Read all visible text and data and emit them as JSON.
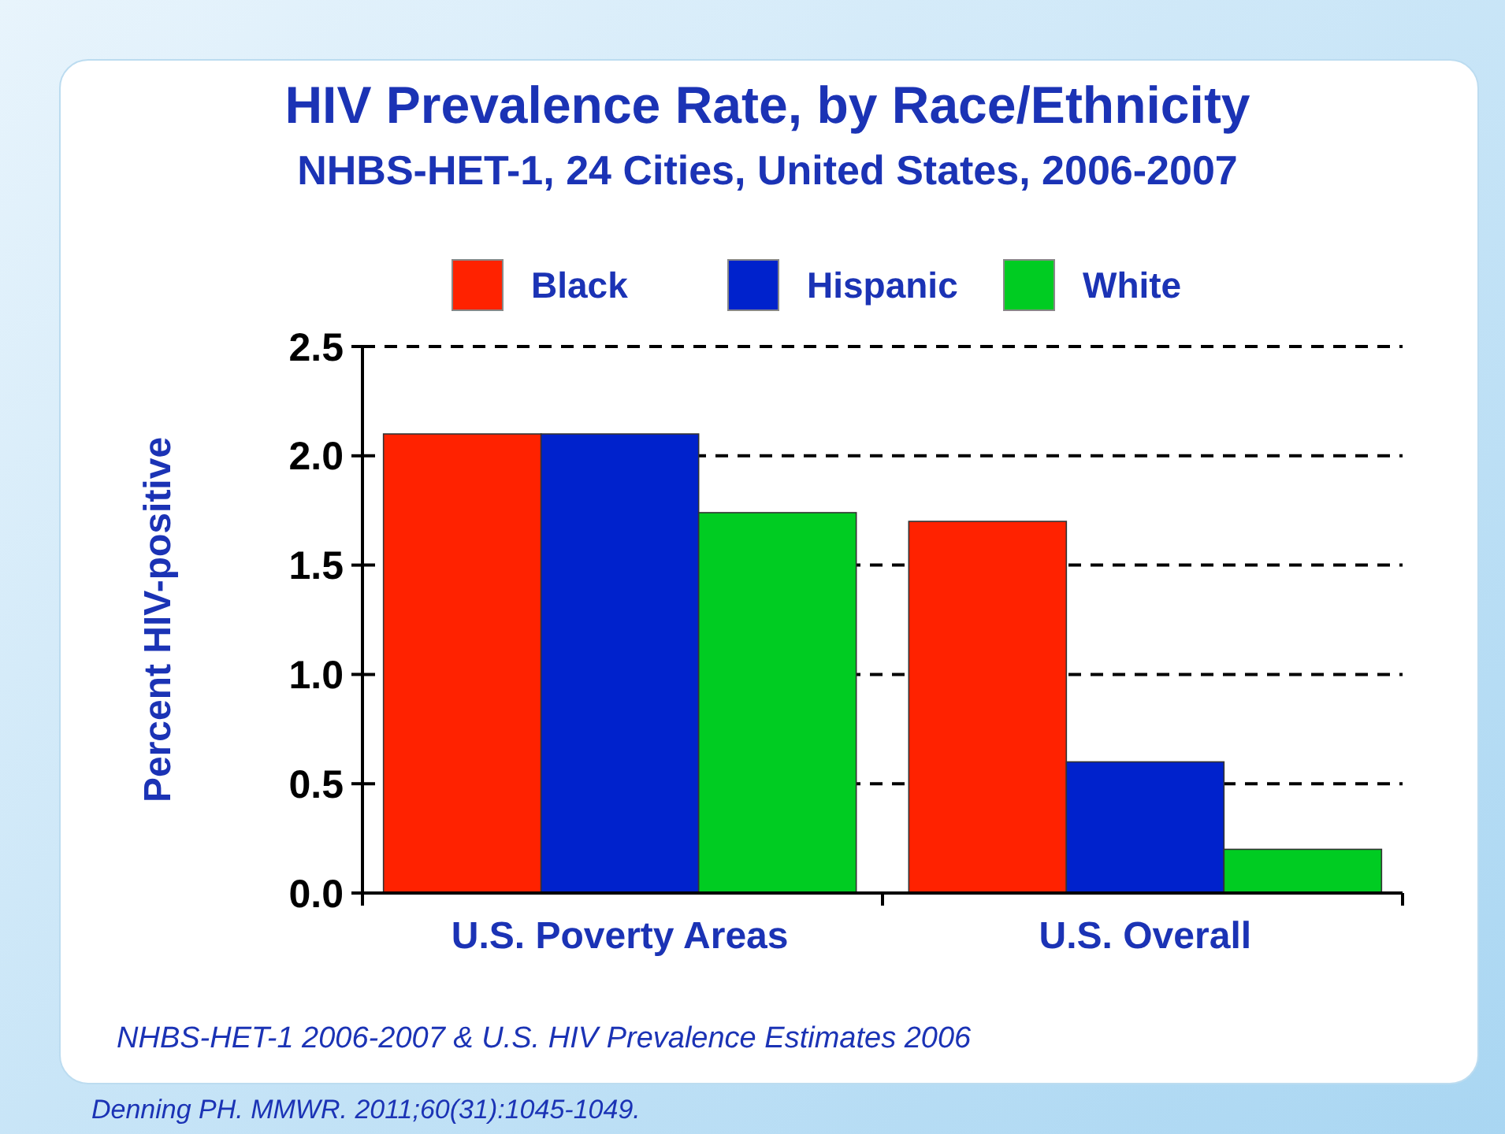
{
  "chart_data": {
    "type": "bar",
    "title": "HIV Prevalence Rate, by Race/Ethnicity",
    "subtitle": "NHBS-HET-1, 24 Cities, United States, 2006-2007",
    "ylabel": "Percent HIV-positive",
    "categories": [
      "U.S. Poverty Areas",
      "U.S. Overall"
    ],
    "series": [
      {
        "name": "Black",
        "color": "#ff2200",
        "values": [
          2.1,
          1.7
        ]
      },
      {
        "name": "Hispanic",
        "color": "#0022cc",
        "values": [
          2.1,
          0.6
        ]
      },
      {
        "name": "White",
        "color": "#00cc22",
        "values": [
          1.74,
          0.2
        ]
      }
    ],
    "ylim": [
      0,
      2.5
    ],
    "yticks": [
      {
        "value": 0,
        "label": "0.0"
      },
      {
        "value": 0.5,
        "label": "0.5"
      },
      {
        "value": 1,
        "label": "1.0"
      },
      {
        "value": 1.5,
        "label": "1.5"
      },
      {
        "value": 2,
        "label": "2.0"
      },
      {
        "value": 2.5,
        "label": "2.5"
      }
    ],
    "grid": "y",
    "legend": "top",
    "line_style": "dashed",
    "annotations": [
      "NHBS-HET-1 2006-2007 & U.S. HIV Prevalence Estimates 2006",
      "Denning PH. MMWR. 2011;60(31):1045-1049."
    ]
  }
}
